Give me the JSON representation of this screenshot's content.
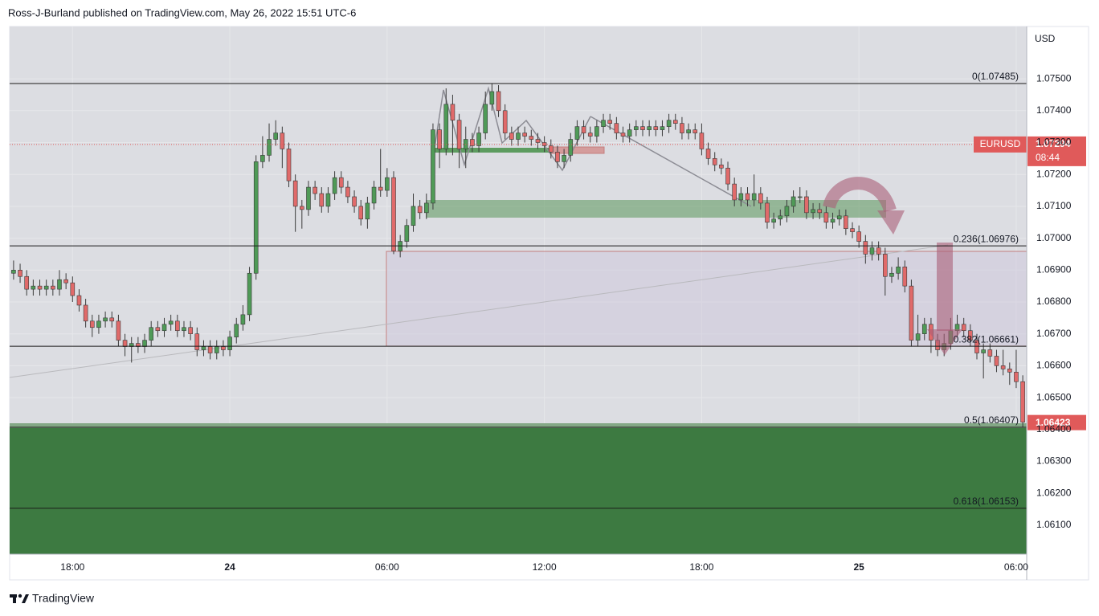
{
  "header": {
    "attribution": "Ross-J-Burland published on TradingView.com, May 26, 2022 15:51 UTC-6"
  },
  "footer": {
    "brand": "TradingView"
  },
  "chart_data": {
    "type": "candlestick",
    "currency": "USD",
    "symbol": "EURUSD",
    "ref_price": 1.07294,
    "countdown": "08:44",
    "up_color": "#4f9a57",
    "down_color": "#e06a6a",
    "grid": true,
    "xlim": [
      15.6,
      54.4
    ],
    "xticks": [
      {
        "value": 18,
        "label": "18:00"
      },
      24,
      {
        "value": 30,
        "label": "06:00"
      },
      {
        "value": 36,
        "label": "12:00"
      },
      {
        "value": 42,
        "label": "18:00"
      },
      {
        "value": 48,
        "label": "25"
      },
      {
        "value": 54,
        "label": "06:00"
      }
    ],
    "ylim": [
      1.06009,
      1.07664
    ],
    "yticks": [
      {
        "value": 1.061,
        "label": "1.06100"
      },
      {
        "value": 1.062,
        "label": "1.06200"
      },
      {
        "value": 1.063,
        "label": "1.06300"
      },
      {
        "value": 1.064,
        "label": "1.06400"
      },
      {
        "value": 1.065,
        "label": "1.06500"
      },
      {
        "value": 1.066,
        "label": "1.06600"
      },
      {
        "value": 1.067,
        "label": "1.06700"
      },
      {
        "value": 1.068,
        "label": "1.06800"
      },
      {
        "value": 1.069,
        "label": "1.06900"
      },
      {
        "value": 1.07,
        "label": "1.07000"
      },
      {
        "value": 1.071,
        "label": "1.07100"
      },
      {
        "value": 1.072,
        "label": "1.07200"
      },
      {
        "value": 1.073,
        "label": "1.07300"
      },
      {
        "value": 1.074,
        "label": "1.07400"
      },
      {
        "value": 1.075,
        "label": "1.07500"
      }
    ],
    "fib_levels": [
      {
        "value": 1.07485,
        "label": "0(1.07485)"
      },
      {
        "value": 1.06976,
        "label": "0.236(1.06976)"
      },
      {
        "value": 1.06661,
        "label": "0.382(1.06661)"
      },
      {
        "value": 1.06407,
        "label": "0.5(1.06407)"
      },
      {
        "value": 1.06153,
        "label": "0.618(1.06153)"
      }
    ],
    "x": [
      15.75,
      16,
      16.25,
      16.5,
      16.75,
      17,
      17.25,
      17.5,
      17.75,
      18,
      18.25,
      18.5,
      18.75,
      19,
      19.25,
      19.5,
      19.75,
      20,
      20.25,
      20.5,
      20.75,
      21,
      21.25,
      21.5,
      21.75,
      22,
      22.25,
      22.5,
      22.75,
      23,
      23.25,
      23.5,
      23.75,
      24,
      24.25,
      24.5,
      24.75,
      25,
      25.25,
      25.5,
      25.75,
      26,
      26.25,
      26.5,
      26.75,
      27,
      27.25,
      27.5,
      27.75,
      28,
      28.25,
      28.5,
      28.75,
      29,
      29.25,
      29.5,
      29.75,
      30,
      30.25,
      30.5,
      30.75,
      31,
      31.25,
      31.5,
      31.75,
      32,
      32.25,
      32.5,
      32.75,
      33,
      33.25,
      33.5,
      33.75,
      34,
      34.25,
      34.5,
      34.75,
      35,
      35.25,
      35.5,
      35.75,
      36,
      36.25,
      36.5,
      36.75,
      37,
      37.25,
      37.5,
      37.75,
      38,
      38.25,
      38.5,
      38.75,
      39,
      39.25,
      39.5,
      39.75,
      40,
      40.25,
      40.5,
      40.75,
      41,
      41.25,
      41.5,
      41.75,
      42,
      42.25,
      42.5,
      42.75,
      43,
      43.25,
      43.5,
      43.75,
      44,
      44.25,
      44.5,
      44.75,
      45,
      45.25,
      45.5,
      45.75,
      46,
      46.25,
      46.5,
      46.75,
      47,
      47.25,
      47.5,
      47.75,
      48,
      48.25,
      48.5,
      48.75,
      49,
      49.25,
      49.5,
      49.75,
      50,
      50.25,
      50.5,
      50.75,
      51,
      51.25,
      51.5,
      51.75,
      52,
      52.25,
      52.5,
      52.75,
      53,
      53.25,
      53.5,
      53.75,
      54,
      54.25
    ],
    "open": [
      1.0689,
      1.069,
      1.0688,
      1.0684,
      1.0685,
      1.0684,
      1.0685,
      1.0684,
      1.0687,
      1.0686,
      1.0682,
      1.0679,
      1.0674,
      1.0672,
      1.0674,
      1.0675,
      1.0674,
      1.0668,
      1.0666,
      1.0667,
      1.0666,
      1.0668,
      1.0672,
      1.0671,
      1.0673,
      1.0674,
      1.0671,
      1.0672,
      1.067,
      1.0665,
      1.0666,
      1.0664,
      1.0666,
      1.0665,
      1.0669,
      1.0673,
      1.0676,
      1.0689,
      1.0724,
      1.0726,
      1.0731,
      1.0733,
      1.0728,
      1.0718,
      1.071,
      1.0709,
      1.0716,
      1.0714,
      1.071,
      1.0714,
      1.0719,
      1.0716,
      1.0713,
      1.071,
      1.0706,
      1.0711,
      1.0716,
      1.0715,
      1.0719,
      1.0696,
      1.0699,
      1.0704,
      1.071,
      1.0708,
      1.0711,
      1.0734,
      1.0728,
      1.0742,
      1.0737,
      1.0728,
      1.0731,
      1.0729,
      1.0733,
      1.0742,
      1.0746,
      1.074,
      1.0733,
      1.0731,
      1.0733,
      1.0732,
      1.0731,
      1.073,
      1.0729,
      1.0727,
      1.0724,
      1.0726,
      1.0731,
      1.0735,
      1.0733,
      1.0732,
      1.0735,
      1.0737,
      1.0736,
      1.0733,
      1.0732,
      1.0734,
      1.0735,
      1.0734,
      1.0735,
      1.0734,
      1.0735,
      1.0737,
      1.0736,
      1.0733,
      1.0734,
      1.0733,
      1.0728,
      1.0725,
      1.0723,
      1.0722,
      1.0717,
      1.0712,
      1.0714,
      1.0712,
      1.0714,
      1.0711,
      1.0705,
      1.0706,
      1.0707,
      1.071,
      1.0713,
      1.0713,
      1.0708,
      1.0709,
      1.0708,
      1.0705,
      1.0706,
      1.0707,
      1.0703,
      1.0702,
      1.0699,
      1.0695,
      1.0697,
      1.0695,
      1.0688,
      1.0689,
      1.0691,
      1.0685,
      1.0668,
      1.067,
      1.0673,
      1.0668,
      1.0665,
      1.0667,
      1.0671,
      1.0673,
      1.0671,
      1.0668,
      1.0664,
      1.0665,
      1.0663,
      1.066,
      1.0659,
      1.0658,
      1.0655
    ],
    "high": [
      1.0693,
      1.0692,
      1.069,
      1.0687,
      1.0687,
      1.0687,
      1.0687,
      1.069,
      1.0689,
      1.0688,
      1.0684,
      1.0681,
      1.0676,
      1.0676,
      1.0677,
      1.0677,
      1.0676,
      1.067,
      1.0669,
      1.0669,
      1.067,
      1.0674,
      1.0674,
      1.0675,
      1.0676,
      1.0676,
      1.0674,
      1.0674,
      1.0672,
      1.0668,
      1.0668,
      1.0668,
      1.0668,
      1.0671,
      1.0675,
      1.0679,
      1.0691,
      1.0726,
      1.0732,
      1.0736,
      1.0737,
      1.0735,
      1.073,
      1.072,
      1.0712,
      1.0718,
      1.0718,
      1.0716,
      1.0716,
      1.0721,
      1.0721,
      1.0718,
      1.0715,
      1.0712,
      1.0713,
      1.0718,
      1.0728,
      1.0722,
      1.0721,
      1.0701,
      1.0706,
      1.0714,
      1.0712,
      1.0714,
      1.0736,
      1.0736,
      1.0747,
      1.0745,
      1.0739,
      1.0735,
      1.0733,
      1.0735,
      1.0746,
      1.07485,
      1.0748,
      1.0742,
      1.0735,
      1.0735,
      1.0735,
      1.0734,
      1.0733,
      1.0732,
      1.0731,
      1.0729,
      1.0728,
      1.0733,
      1.0737,
      1.0737,
      1.0735,
      1.0737,
      1.0739,
      1.0739,
      1.0738,
      1.0735,
      1.0736,
      1.0737,
      1.0737,
      1.0737,
      1.0737,
      1.0737,
      1.0739,
      1.0739,
      1.0738,
      1.0736,
      1.0736,
      1.0736,
      1.073,
      1.0727,
      1.0725,
      1.0724,
      1.0719,
      1.0716,
      1.0716,
      1.072,
      1.0716,
      1.0713,
      1.0708,
      1.0709,
      1.0712,
      1.0715,
      1.0716,
      1.0715,
      1.0711,
      1.0711,
      1.071,
      1.0708,
      1.0709,
      1.0709,
      1.0705,
      1.0704,
      1.0701,
      1.0699,
      1.0699,
      1.0697,
      1.0691,
      1.0694,
      1.0693,
      1.0687,
      1.0676,
      1.0675,
      1.0675,
      1.067,
      1.067,
      1.0675,
      1.0676,
      1.0675,
      1.0673,
      1.067,
      1.0667,
      1.0667,
      1.0665,
      1.0665,
      1.0661,
      1.0665,
      1.0657
    ],
    "low": [
      1.0687,
      1.0686,
      1.0682,
      1.0682,
      1.0682,
      1.0682,
      1.0682,
      1.0682,
      1.0684,
      1.068,
      1.0677,
      1.0672,
      1.0669,
      1.067,
      1.0672,
      1.0672,
      1.0666,
      1.0663,
      1.0661,
      1.0664,
      1.0664,
      1.0666,
      1.0669,
      1.0669,
      1.0671,
      1.0669,
      1.0669,
      1.0668,
      1.0663,
      1.0663,
      1.0662,
      1.0662,
      1.0663,
      1.0663,
      1.0667,
      1.0671,
      1.0674,
      1.0687,
      1.0722,
      1.0724,
      1.0729,
      1.0722,
      1.0716,
      1.0702,
      1.0703,
      1.0707,
      1.0712,
      1.0708,
      1.0708,
      1.0712,
      1.0714,
      1.0711,
      1.0708,
      1.0704,
      1.0703,
      1.0709,
      1.0713,
      1.0713,
      1.0695,
      1.0694,
      1.0697,
      1.0702,
      1.0706,
      1.0706,
      1.0709,
      1.0722,
      1.0726,
      1.0726,
      1.0722,
      1.0722,
      1.0727,
      1.0727,
      1.0731,
      1.074,
      1.0738,
      1.0731,
      1.0729,
      1.0729,
      1.073,
      1.0729,
      1.0728,
      1.0727,
      1.0725,
      1.0722,
      1.0722,
      1.0724,
      1.0729,
      1.0731,
      1.073,
      1.073,
      1.0733,
      1.0734,
      1.0731,
      1.073,
      1.073,
      1.0732,
      1.0732,
      1.0732,
      1.0732,
      1.0732,
      1.0733,
      1.0734,
      1.0731,
      1.0731,
      1.0731,
      1.0726,
      1.0723,
      1.0721,
      1.072,
      1.0715,
      1.071,
      1.071,
      1.071,
      1.071,
      1.0709,
      1.0703,
      1.0703,
      1.0704,
      1.0705,
      1.0708,
      1.0711,
      1.0706,
      1.0706,
      1.0706,
      1.0703,
      1.0703,
      1.0704,
      1.0701,
      1.07,
      1.0697,
      1.0692,
      1.0693,
      1.0693,
      1.0682,
      1.0686,
      1.0687,
      1.0683,
      1.0666,
      1.0666,
      1.0668,
      1.0664,
      1.0663,
      1.0663,
      1.0665,
      1.0669,
      1.0669,
      1.0666,
      1.0662,
      1.0656,
      1.0661,
      1.0658,
      1.0657,
      1.0654,
      1.0653,
      1.06407
    ],
    "close": [
      1.069,
      1.0688,
      1.0684,
      1.0685,
      1.0684,
      1.0685,
      1.0684,
      1.0687,
      1.0686,
      1.0682,
      1.0679,
      1.0674,
      1.0672,
      1.0674,
      1.0675,
      1.0674,
      1.0668,
      1.0666,
      1.0667,
      1.0666,
      1.0668,
      1.0672,
      1.0671,
      1.0673,
      1.0674,
      1.0671,
      1.0672,
      1.067,
      1.0665,
      1.0666,
      1.0664,
      1.0666,
      1.0665,
      1.0669,
      1.0673,
      1.0676,
      1.0689,
      1.0724,
      1.0726,
      1.0731,
      1.0733,
      1.0728,
      1.0718,
      1.071,
      1.0709,
      1.0716,
      1.0714,
      1.071,
      1.0714,
      1.0719,
      1.0716,
      1.0713,
      1.071,
      1.0706,
      1.0711,
      1.0716,
      1.0715,
      1.0719,
      1.0696,
      1.0699,
      1.0704,
      1.071,
      1.0708,
      1.0711,
      1.0734,
      1.0728,
      1.0742,
      1.0737,
      1.0728,
      1.0731,
      1.0729,
      1.0733,
      1.0742,
      1.0746,
      1.074,
      1.0733,
      1.0731,
      1.0733,
      1.0732,
      1.0731,
      1.073,
      1.0729,
      1.0727,
      1.0724,
      1.0726,
      1.0731,
      1.0735,
      1.0733,
      1.0732,
      1.0735,
      1.0737,
      1.0736,
      1.0733,
      1.0732,
      1.0734,
      1.0735,
      1.0734,
      1.0735,
      1.0734,
      1.0735,
      1.0737,
      1.0736,
      1.0733,
      1.0734,
      1.0733,
      1.0728,
      1.0725,
      1.0723,
      1.0722,
      1.0717,
      1.0712,
      1.0714,
      1.0712,
      1.0714,
      1.0711,
      1.0705,
      1.0706,
      1.0707,
      1.071,
      1.0713,
      1.0713,
      1.0708,
      1.0709,
      1.0708,
      1.0705,
      1.0706,
      1.0707,
      1.0703,
      1.0702,
      1.0699,
      1.0695,
      1.0697,
      1.0695,
      1.0688,
      1.0689,
      1.0691,
      1.0685,
      1.0668,
      1.067,
      1.0673,
      1.0668,
      1.0665,
      1.0667,
      1.0671,
      1.0673,
      1.0671,
      1.0668,
      1.0664,
      1.0665,
      1.0663,
      1.066,
      1.0659,
      1.0658,
      1.0655,
      1.06423
    ]
  }
}
